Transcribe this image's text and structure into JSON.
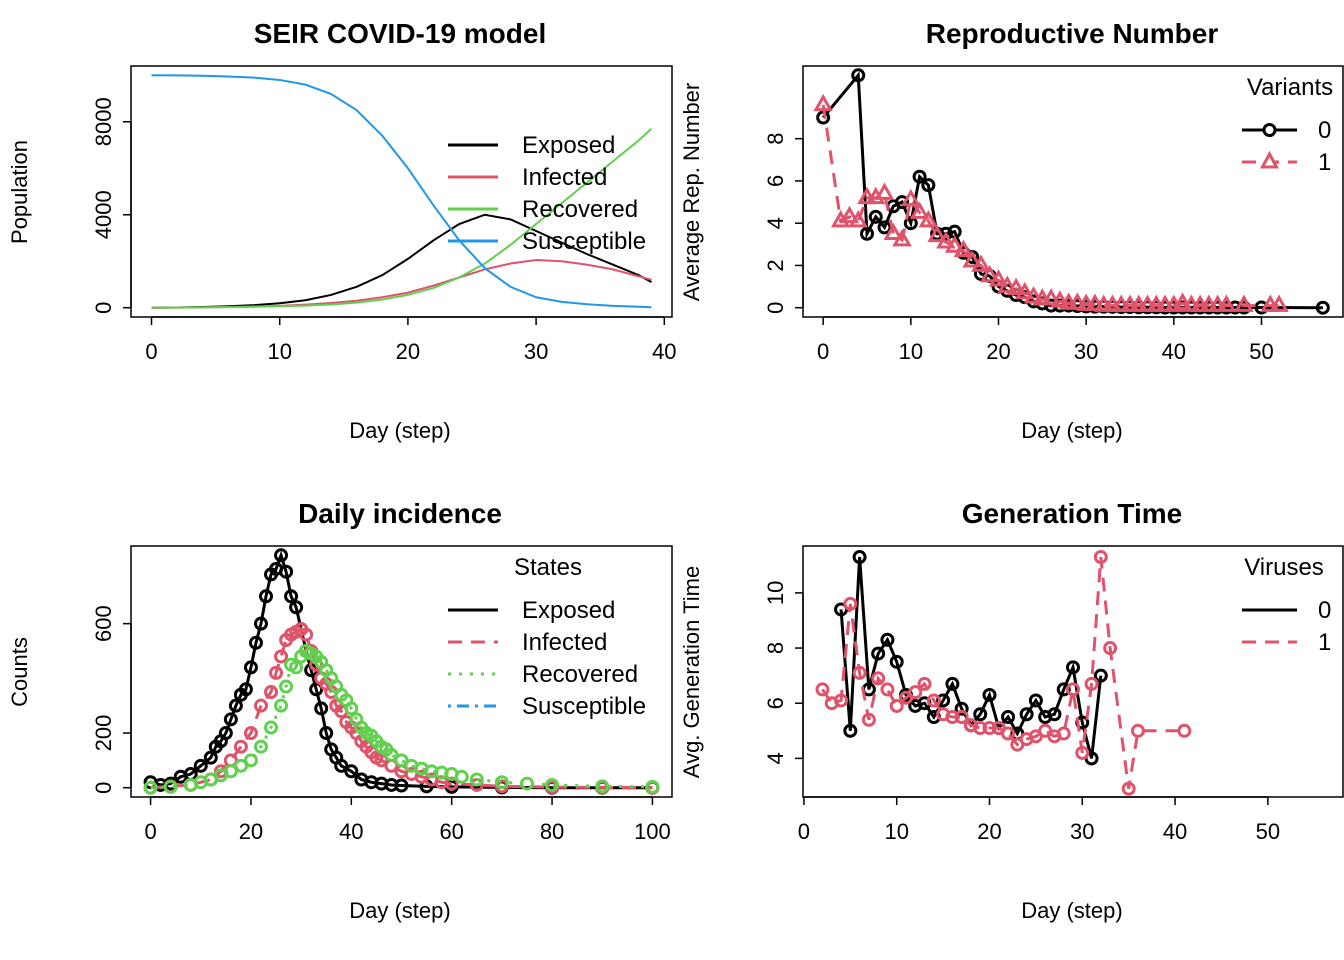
{
  "colors": {
    "black": "#000000",
    "red": "#DF536B",
    "green": "#61D04F",
    "blue": "#2297E6"
  },
  "chart_data": [
    {
      "type": "line",
      "title": "SEIR COVID-19 model",
      "xlabel": "Day (step)",
      "ylabel": "Population",
      "xlim": [
        0,
        40
      ],
      "ylim": [
        0,
        10000
      ],
      "xticks": [
        "0",
        "10",
        "20",
        "30",
        "40"
      ],
      "yticks": [
        "0",
        "4000",
        "8000"
      ],
      "legend": {
        "position": "right",
        "title": "",
        "entries": [
          "Exposed",
          "Infected",
          "Recovered",
          "Susceptible"
        ]
      },
      "x": [
        0,
        2,
        4,
        6,
        8,
        10,
        12,
        14,
        16,
        18,
        20,
        22,
        24,
        26,
        28,
        30,
        32,
        34,
        36,
        38,
        39
      ],
      "series": [
        {
          "name": "Exposed",
          "color": "#000000",
          "dash": "solid",
          "values": [
            0,
            10,
            30,
            60,
            110,
            190,
            320,
            550,
            900,
            1400,
            2100,
            2900,
            3600,
            4000,
            3800,
            3300,
            2800,
            2300,
            1850,
            1400,
            1100
          ]
        },
        {
          "name": "Infected",
          "color": "#DF536B",
          "dash": "solid",
          "values": [
            0,
            5,
            15,
            30,
            50,
            80,
            130,
            200,
            300,
            450,
            650,
            950,
            1300,
            1650,
            1900,
            2050,
            2000,
            1850,
            1650,
            1350,
            1200
          ]
        },
        {
          "name": "Recovered",
          "color": "#61D04F",
          "dash": "solid",
          "values": [
            0,
            5,
            15,
            25,
            40,
            60,
            90,
            140,
            220,
            350,
            550,
            850,
            1300,
            1900,
            2700,
            3600,
            4500,
            5400,
            6300,
            7200,
            7700
          ]
        },
        {
          "name": "Susceptible",
          "color": "#2297E6",
          "dash": "solid",
          "values": [
            10000,
            9995,
            9980,
            9950,
            9900,
            9800,
            9600,
            9200,
            8500,
            7400,
            6000,
            4400,
            2900,
            1700,
            900,
            450,
            250,
            150,
            80,
            40,
            20
          ]
        }
      ]
    },
    {
      "type": "line",
      "title": "Reproductive Number",
      "xlabel": "Day (step)",
      "ylabel": "Average Rep. Number",
      "xlim": [
        0,
        57
      ],
      "ylim": [
        0,
        11
      ],
      "xticks": [
        "0",
        "10",
        "20",
        "30",
        "40",
        "50"
      ],
      "yticks": [
        "0",
        "2",
        "4",
        "6",
        "8"
      ],
      "legend": {
        "position": "top-right",
        "title": "Variants",
        "entries": [
          "0",
          "1"
        ]
      },
      "series": [
        {
          "name": "0",
          "color": "#000000",
          "dash": "solid",
          "marker": "circle",
          "x": [
            0,
            4,
            5,
            6,
            7,
            8,
            9,
            10,
            11,
            12,
            13,
            14,
            15,
            16,
            17,
            18,
            19,
            20,
            21,
            22,
            23,
            24,
            25,
            26,
            27,
            28,
            29,
            30,
            31,
            32,
            33,
            34,
            35,
            36,
            37,
            38,
            39,
            40,
            41,
            42,
            43,
            44,
            45,
            46,
            47,
            48,
            50,
            57
          ],
          "values": [
            9,
            11,
            3.5,
            4.3,
            3.8,
            4.8,
            5.0,
            4.0,
            6.2,
            5.8,
            3.5,
            3.5,
            3.6,
            2.6,
            2.4,
            1.6,
            1.5,
            1.0,
            0.8,
            0.6,
            0.5,
            0.3,
            0.2,
            0.1,
            0.1,
            0.1,
            0.08,
            0.06,
            0.05,
            0.05,
            0.04,
            0.03,
            0.03,
            0.02,
            0.02,
            0.02,
            0.01,
            0.01,
            0.01,
            0.01,
            0.01,
            0.01,
            0.01,
            0.01,
            0.01,
            0.01,
            0.01,
            0.0
          ]
        },
        {
          "name": "1",
          "color": "#DF536B",
          "dash": "dashed",
          "marker": "triangle",
          "x": [
            0,
            2,
            3,
            4,
            5,
            6,
            7,
            8,
            9,
            10,
            11,
            12,
            13,
            14,
            15,
            16,
            17,
            18,
            19,
            20,
            21,
            22,
            23,
            24,
            25,
            26,
            27,
            28,
            29,
            30,
            31,
            32,
            33,
            34,
            35,
            36,
            37,
            38,
            39,
            40,
            41,
            42,
            43,
            44,
            45,
            46,
            48,
            51,
            52
          ],
          "values": [
            9.6,
            4.1,
            4.3,
            4.1,
            5.2,
            5.2,
            5.4,
            3.5,
            3.2,
            5.1,
            4.5,
            4.1,
            3.4,
            3.1,
            2.9,
            2.7,
            2.2,
            2.0,
            1.5,
            1.3,
            1.0,
            0.9,
            0.7,
            0.5,
            0.4,
            0.4,
            0.3,
            0.2,
            0.2,
            0.15,
            0.15,
            0.1,
            0.1,
            0.1,
            0.1,
            0.1,
            0.1,
            0.1,
            0.1,
            0.1,
            0.2,
            0.1,
            0.1,
            0.1,
            0.1,
            0.1,
            0.1,
            0.1,
            0.1
          ]
        }
      ]
    },
    {
      "type": "line",
      "title": "Daily incidence",
      "xlabel": "Day (step)",
      "ylabel": "Counts",
      "xlim": [
        0,
        100
      ],
      "ylim": [
        0,
        850
      ],
      "xticks": [
        "0",
        "20",
        "40",
        "60",
        "80",
        "100"
      ],
      "yticks": [
        "0",
        "200",
        "600"
      ],
      "legend": {
        "position": "right",
        "title": "States",
        "entries": [
          "Exposed",
          "Infected",
          "Recovered",
          "Susceptible"
        ]
      },
      "series": [
        {
          "name": "Exposed",
          "color": "#000000",
          "dash": "solid",
          "marker": "circle",
          "x": [
            0,
            2,
            4,
            6,
            8,
            10,
            12,
            13,
            14,
            15,
            16,
            17,
            18,
            19,
            20,
            21,
            22,
            23,
            24,
            25,
            26,
            27,
            28,
            29,
            30,
            31,
            32,
            33,
            34,
            35,
            36,
            37,
            38,
            40,
            42,
            44,
            46,
            48,
            50,
            55,
            60,
            70,
            80,
            90,
            100
          ],
          "values": [
            20,
            10,
            15,
            40,
            50,
            80,
            110,
            150,
            170,
            200,
            250,
            300,
            340,
            360,
            440,
            530,
            600,
            700,
            780,
            800,
            850,
            790,
            700,
            660,
            580,
            500,
            430,
            360,
            290,
            200,
            140,
            110,
            80,
            60,
            30,
            20,
            15,
            10,
            8,
            5,
            3,
            1,
            0,
            0,
            0
          ]
        },
        {
          "name": "Infected",
          "color": "#DF536B",
          "dash": "dashed",
          "marker": "circle",
          "x": [
            0,
            4,
            8,
            12,
            14,
            16,
            18,
            20,
            22,
            24,
            25,
            26,
            27,
            28,
            29,
            30,
            31,
            32,
            33,
            34,
            35,
            36,
            37,
            38,
            39,
            40,
            41,
            42,
            43,
            44,
            45,
            46,
            48,
            50,
            52,
            54,
            56,
            58,
            60,
            65,
            70,
            80,
            90,
            100
          ],
          "values": [
            0,
            5,
            10,
            30,
            60,
            100,
            150,
            200,
            300,
            350,
            420,
            480,
            540,
            560,
            570,
            580,
            560,
            500,
            450,
            400,
            380,
            350,
            300,
            280,
            240,
            220,
            200,
            170,
            150,
            130,
            110,
            100,
            80,
            60,
            50,
            40,
            30,
            20,
            15,
            10,
            5,
            2,
            1,
            0
          ]
        },
        {
          "name": "Recovered",
          "color": "#61D04F",
          "dash": "dotted",
          "marker": "circle",
          "x": [
            0,
            4,
            8,
            10,
            12,
            14,
            16,
            18,
            20,
            22,
            24,
            26,
            27,
            28,
            29,
            30,
            31,
            32,
            33,
            34,
            35,
            36,
            37,
            38,
            39,
            40,
            41,
            42,
            43,
            44,
            45,
            46,
            47,
            48,
            50,
            52,
            54,
            56,
            58,
            60,
            62,
            65,
            70,
            75,
            80,
            90,
            100
          ],
          "values": [
            0,
            3,
            10,
            20,
            30,
            45,
            60,
            80,
            100,
            150,
            220,
            300,
            370,
            450,
            440,
            480,
            500,
            490,
            480,
            460,
            430,
            400,
            370,
            340,
            320,
            290,
            250,
            220,
            200,
            190,
            170,
            150,
            140,
            120,
            100,
            80,
            70,
            60,
            55,
            50,
            40,
            30,
            20,
            15,
            10,
            5,
            3
          ]
        },
        {
          "name": "Susceptible",
          "color": "#2297E6",
          "dash": "dotdash",
          "marker": "none",
          "x": [],
          "values": []
        }
      ]
    },
    {
      "type": "line",
      "title": "Generation Time",
      "xlabel": "Day (step)",
      "ylabel": "Avg. Generation Time",
      "xlim": [
        0,
        58
      ],
      "ylim": [
        2.7,
        11.7
      ],
      "xticks": [
        "0",
        "10",
        "20",
        "30",
        "40",
        "50"
      ],
      "yticks": [
        "4",
        "6",
        "8",
        "10"
      ],
      "legend": {
        "position": "top-right",
        "title": "Viruses",
        "entries": [
          "0",
          "1"
        ]
      },
      "series": [
        {
          "name": "0",
          "color": "#000000",
          "dash": "solid",
          "marker": "circle",
          "x": [
            4,
            5,
            6,
            7,
            8,
            9,
            10,
            11,
            12,
            13,
            14,
            15,
            16,
            17,
            18,
            19,
            20,
            21,
            22,
            23,
            24,
            25,
            26,
            27,
            28,
            29,
            30,
            31,
            32
          ],
          "values": [
            9.4,
            5.0,
            11.3,
            6.5,
            7.8,
            8.3,
            7.5,
            6.3,
            5.9,
            6.0,
            5.5,
            6.1,
            6.7,
            5.8,
            5.2,
            5.6,
            6.3,
            5.1,
            5.5,
            4.9,
            5.6,
            6.1,
            5.5,
            5.6,
            6.5,
            7.3,
            5.3,
            4.0,
            7.0
          ]
        },
        {
          "name": "1",
          "color": "#DF536B",
          "dash": "dashed",
          "marker": "circle",
          "x": [
            2,
            3,
            4,
            5,
            6,
            7,
            8,
            9,
            10,
            11,
            12,
            13,
            14,
            15,
            16,
            17,
            18,
            19,
            20,
            21,
            22,
            23,
            24,
            25,
            26,
            27,
            28,
            29,
            30,
            31,
            32,
            33,
            35,
            36,
            41
          ],
          "values": [
            6.5,
            6.0,
            6.1,
            9.6,
            7.1,
            5.4,
            6.9,
            6.5,
            5.9,
            6.2,
            6.4,
            6.7,
            6.1,
            5.6,
            5.5,
            5.5,
            5.2,
            5.1,
            5.1,
            5.1,
            4.9,
            4.5,
            4.7,
            4.8,
            5.0,
            4.8,
            4.9,
            6.5,
            4.2,
            6.7,
            11.3,
            8.0,
            2.9,
            5.0,
            5.0
          ]
        }
      ]
    }
  ]
}
